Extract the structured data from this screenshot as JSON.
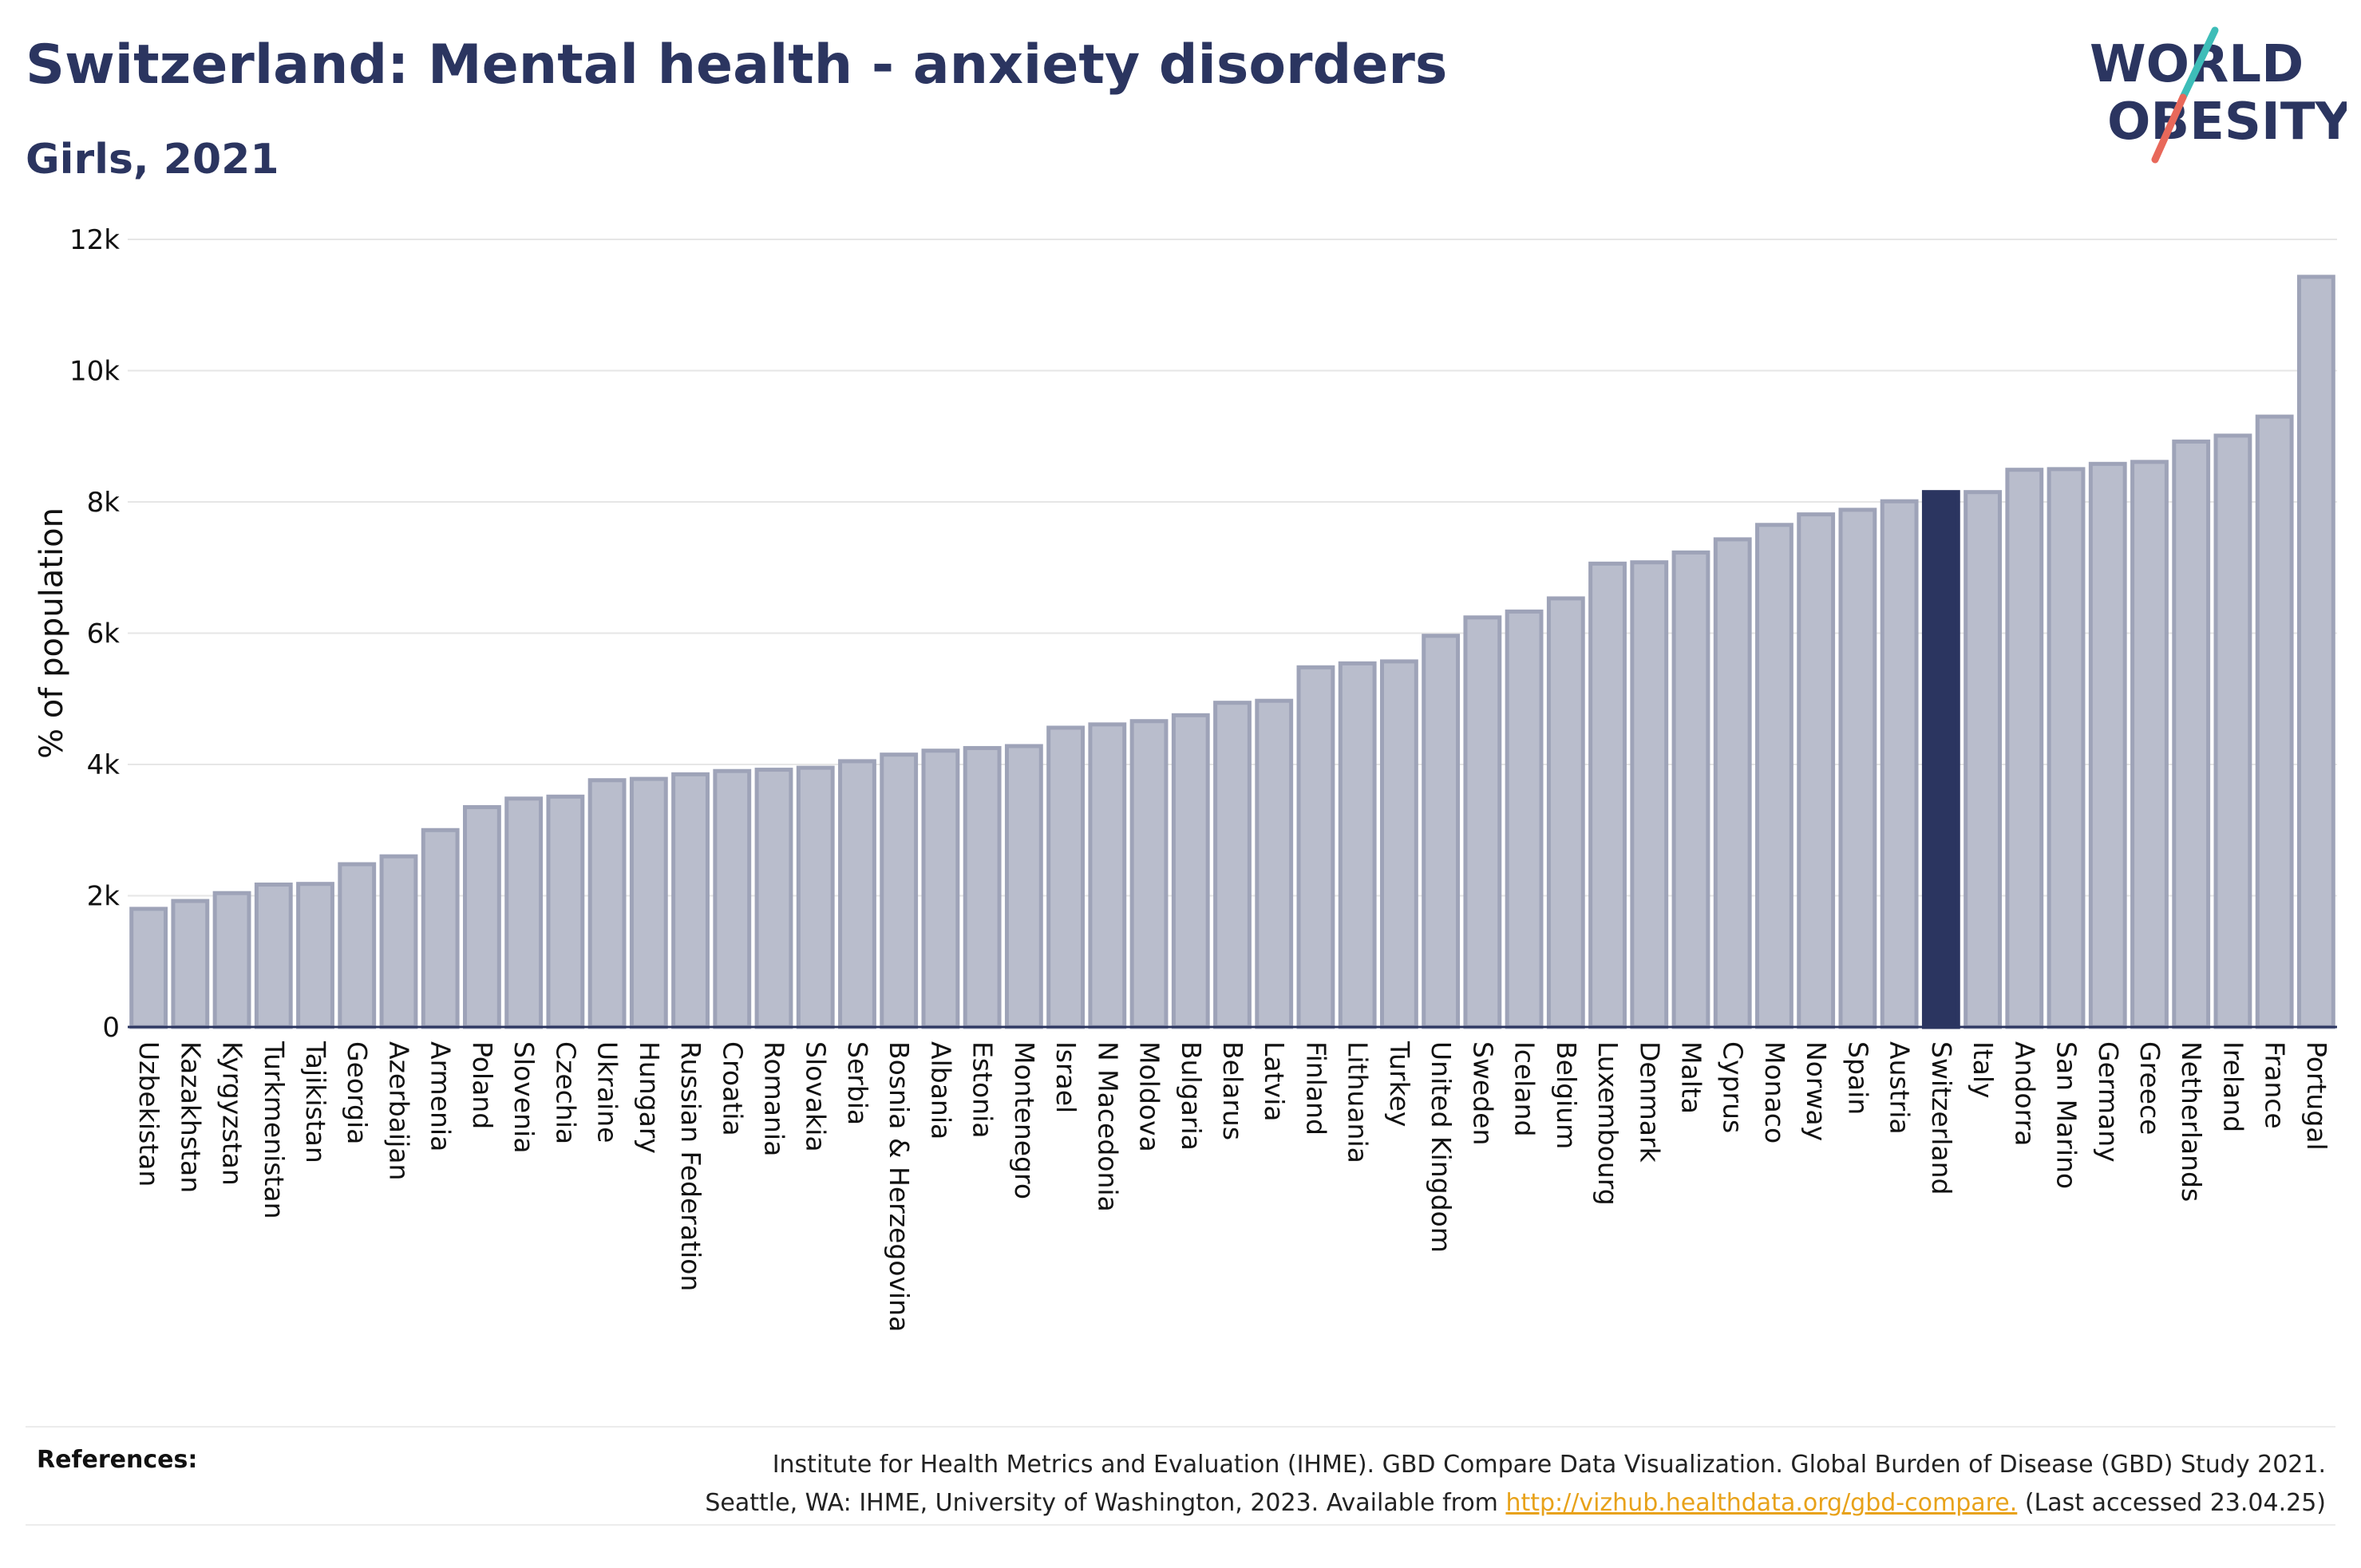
{
  "header": {
    "title": "Switzerland: Mental health - anxiety disorders",
    "subtitle": "Girls, 2021"
  },
  "logo": {
    "line1": "WORLD",
    "line2": "OBESITY",
    "colors": {
      "text": "#2b3560",
      "slash_top": "#3dbdb8",
      "slash_bottom": "#e8685a"
    }
  },
  "chart_data": {
    "type": "bar",
    "title": "Switzerland: Mental health - anxiety disorders",
    "subtitle": "Girls, 2021",
    "ylabel": "% of population",
    "xlabel": "",
    "ylim": [
      0,
      12000
    ],
    "yticks": [
      0,
      2000,
      4000,
      6000,
      8000,
      10000,
      12000
    ],
    "ytick_labels": [
      "0",
      "2k",
      "4k",
      "6k",
      "8k",
      "10k",
      "12k"
    ],
    "grid": "horizontal",
    "highlight": "Switzerland",
    "colors": {
      "bar": "#b9bdcc",
      "bar_edge": "#9ea3b8",
      "highlight": "#2b3560"
    },
    "categories": [
      "Uzbekistan",
      "Kazakhstan",
      "Kyrgyzstan",
      "Turkmenistan",
      "Tajikistan",
      "Georgia",
      "Azerbaijan",
      "Armenia",
      "Poland",
      "Slovenia",
      "Czechia",
      "Ukraine",
      "Hungary",
      "Russian Federation",
      "Croatia",
      "Romania",
      "Slovakia",
      "Serbia",
      "Bosnia & Herzegovina",
      "Albania",
      "Estonia",
      "Montenegro",
      "Israel",
      "N Macedonia",
      "Moldova",
      "Bulgaria",
      "Belarus",
      "Latvia",
      "Finland",
      "Lithuania",
      "Turkey",
      "United Kingdom",
      "Sweden",
      "Iceland",
      "Belgium",
      "Luxembourg",
      "Denmark",
      "Malta",
      "Cyprus",
      "Monaco",
      "Norway",
      "Spain",
      "Austria",
      "Switzerland",
      "Italy",
      "Andorra",
      "San Marino",
      "Germany",
      "Greece",
      "Netherlands",
      "Ireland",
      "France",
      "Portugal"
    ],
    "values": [
      1800,
      1920,
      2040,
      2170,
      2180,
      2480,
      2600,
      3000,
      3350,
      3480,
      3510,
      3760,
      3780,
      3850,
      3900,
      3920,
      3950,
      4050,
      4150,
      4210,
      4250,
      4280,
      4560,
      4610,
      4660,
      4750,
      4940,
      4970,
      5480,
      5540,
      5570,
      5960,
      6240,
      6330,
      6530,
      7060,
      7080,
      7230,
      7430,
      7650,
      7810,
      7880,
      8010,
      8150,
      8150,
      8490,
      8500,
      8580,
      8610,
      8920,
      9010,
      9300,
      11430
    ]
  },
  "references": {
    "label": "References:",
    "line1": "Institute for Health Metrics and Evaluation (IHME). GBD Compare Data Visualization. Global Burden of Disease (GBD) Study 2021.",
    "line2_prefix": "Seattle, WA: IHME, University of Washington, 2023. Available from ",
    "link_text": "http://vizhub.healthdata.org/gbd-compare.",
    "line2_suffix": " (Last accessed 23.04.25)"
  }
}
